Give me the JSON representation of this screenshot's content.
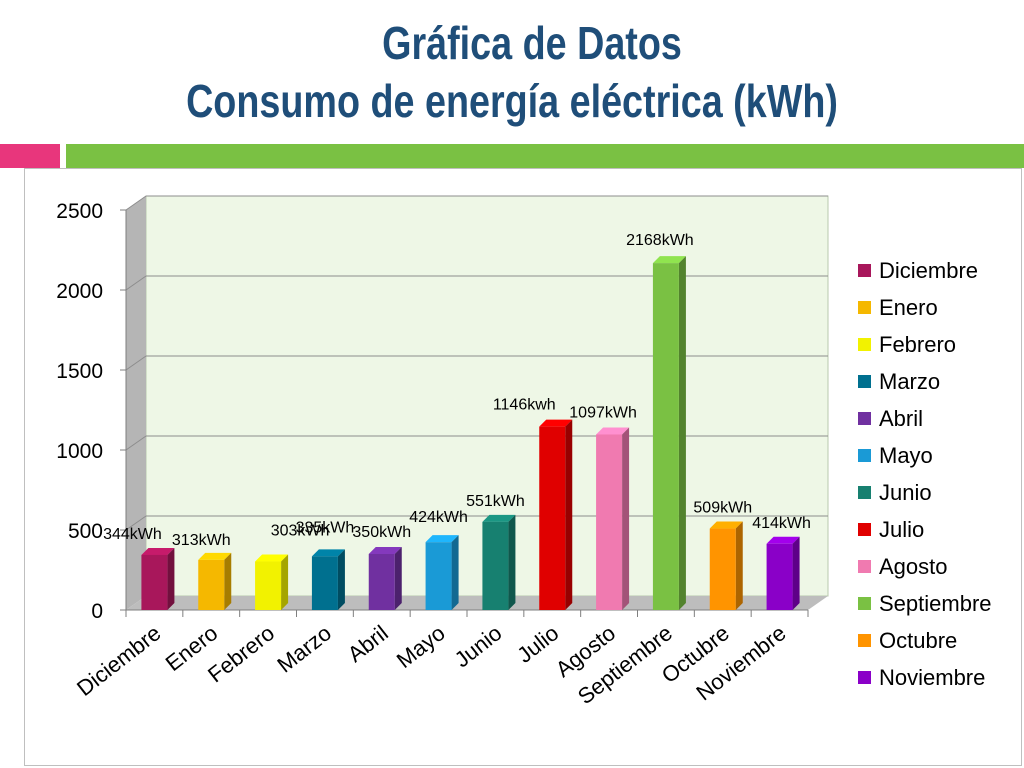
{
  "title": {
    "line1": "Gráfica de Datos",
    "line2": "Consumo de energía eléctrica (kWh)"
  },
  "colors": {
    "title": "#1f4e79",
    "accent_pink": "#e8367c",
    "accent_green": "#7ac143",
    "plot_background": "#eef7e6"
  },
  "chart_data": {
    "type": "bar",
    "style": "3d-column",
    "categories": [
      "Diciembre",
      "Enero",
      "Febrero",
      "Marzo",
      "Abril",
      "Mayo",
      "Junio",
      "Julio",
      "Agosto",
      "Septiembre",
      "Octubre",
      "Noviembre"
    ],
    "values": [
      344,
      313,
      303,
      335,
      350,
      424,
      551,
      1146,
      1097,
      2168,
      509,
      414
    ],
    "data_labels": [
      "344kWh",
      "313kWh",
      "303kWh",
      "335kWh",
      "350kWh",
      "424kWh",
      "551kWh",
      "1146kwh",
      "1097kWh",
      "2168kWh",
      "509kWh",
      "414kWh"
    ],
    "colors": [
      "#a8175b",
      "#f5b800",
      "#f2f200",
      "#00708f",
      "#7030a0",
      "#1a9ad6",
      "#178070",
      "#e00000",
      "#f07ab0",
      "#7ac143",
      "#ff9400",
      "#8a00c8"
    ],
    "yticks": [
      0,
      500,
      1000,
      1500,
      2000,
      2500
    ],
    "ylim": [
      0,
      2500
    ],
    "grid": true,
    "legend_position": "right",
    "legend": [
      "Diciembre",
      "Enero",
      "Febrero",
      "Marzo",
      "Abril",
      "Mayo",
      "Junio",
      "Julio",
      "Agosto",
      "Septiembre",
      "Octubre",
      "Noviembre"
    ]
  }
}
